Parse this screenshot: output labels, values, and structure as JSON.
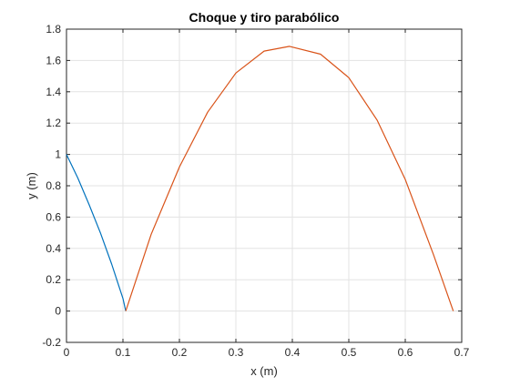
{
  "chart_data": {
    "type": "line",
    "title": "Choque y tiro parabólico",
    "xlabel": "x (m)",
    "ylabel": "y (m)",
    "xlim": [
      0,
      0.7
    ],
    "ylim": [
      -0.2,
      1.8
    ],
    "xticks": [
      0,
      0.1,
      0.2,
      0.3,
      0.4,
      0.5,
      0.6,
      0.7
    ],
    "xtick_labels": [
      "0",
      "0.1",
      "0.2",
      "0.3",
      "0.4",
      "0.5",
      "0.6",
      "0.7"
    ],
    "yticks": [
      -0.2,
      0,
      0.2,
      0.4,
      0.6,
      0.8,
      1,
      1.2,
      1.4,
      1.6,
      1.8
    ],
    "ytick_labels": [
      "-0.2",
      "0",
      "0.2",
      "0.4",
      "0.6",
      "0.8",
      "1",
      "1.2",
      "1.4",
      "1.6",
      "1.8"
    ],
    "grid": true,
    "legend": "none",
    "series": [
      {
        "color": "#0072BD",
        "x": [
          0,
          0.02,
          0.04,
          0.06,
          0.08,
          0.1,
          0.105
        ],
        "y": [
          1.0,
          0.85,
          0.68,
          0.5,
          0.3,
          0.08,
          0.0
        ]
      },
      {
        "color": "#D95319",
        "x": [
          0.105,
          0.15,
          0.2,
          0.25,
          0.3,
          0.35,
          0.395,
          0.45,
          0.5,
          0.55,
          0.6,
          0.65,
          0.685
        ],
        "y": [
          0.0,
          0.49,
          0.92,
          1.27,
          1.52,
          1.66,
          1.69,
          1.64,
          1.49,
          1.22,
          0.84,
          0.36,
          0.0
        ]
      }
    ]
  }
}
